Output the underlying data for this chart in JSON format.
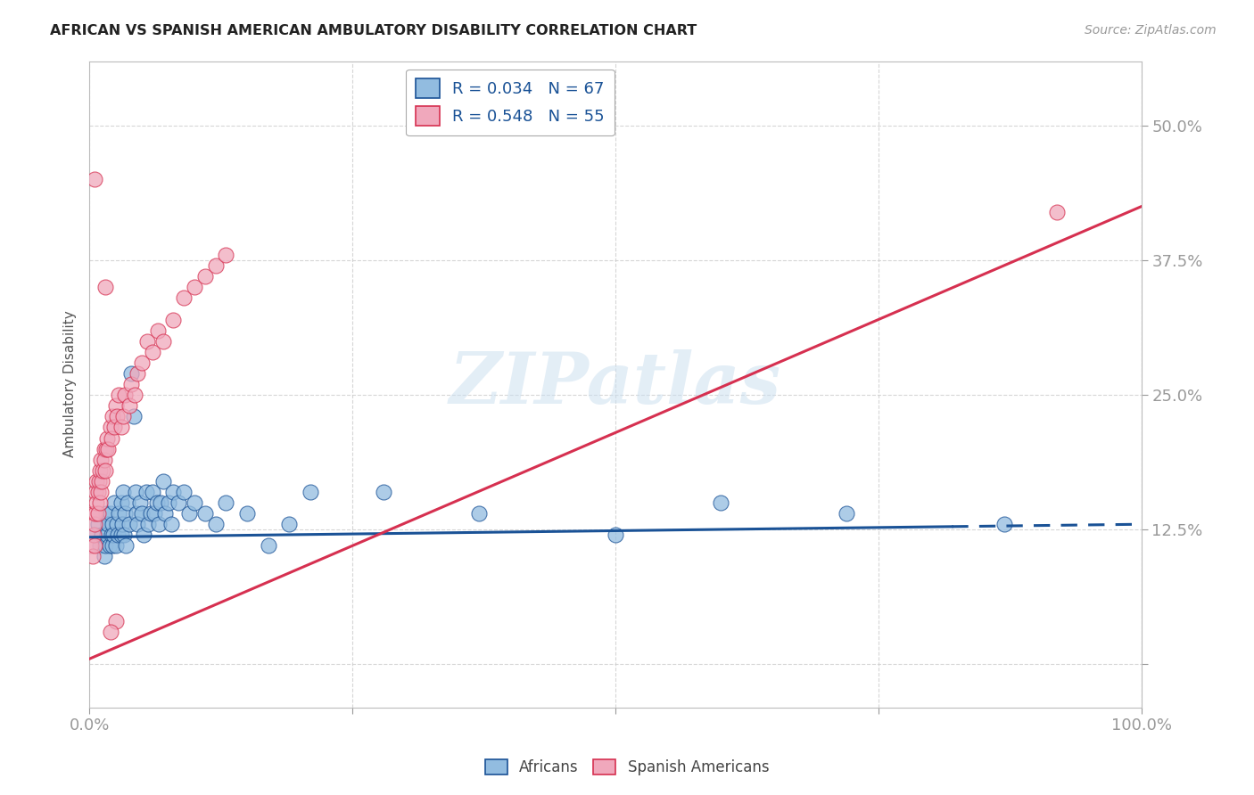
{
  "title": "AFRICAN VS SPANISH AMERICAN AMBULATORY DISABILITY CORRELATION CHART",
  "source": "Source: ZipAtlas.com",
  "ylabel": "Ambulatory Disability",
  "xlim": [
    0,
    1.0
  ],
  "ylim": [
    -0.04,
    0.56
  ],
  "yticks": [
    0.0,
    0.125,
    0.25,
    0.375,
    0.5
  ],
  "ytick_labels": [
    "",
    "12.5%",
    "25.0%",
    "37.5%",
    "50.0%"
  ],
  "xticks": [
    0.0,
    0.25,
    0.5,
    0.75,
    1.0
  ],
  "xtick_labels": [
    "0.0%",
    "",
    "",
    "",
    "100.0%"
  ],
  "watermark": "ZIPatlas",
  "legend1_R": "R = 0.034",
  "legend1_N": "N = 67",
  "legend2_R": "R = 0.548",
  "legend2_N": "N = 55",
  "blue_color": "#92bce0",
  "pink_color": "#f0a8bc",
  "line_blue": "#1a5296",
  "line_pink": "#d63050",
  "title_color": "#222222",
  "tick_color": "#3060b0",
  "background_color": "#ffffff",
  "grid_color": "#cccccc",
  "blue_line_slope": 0.012,
  "blue_line_intercept": 0.118,
  "pink_line_slope": 0.42,
  "pink_line_intercept": 0.005,
  "africans_x": [
    0.005,
    0.008,
    0.01,
    0.012,
    0.014,
    0.015,
    0.016,
    0.017,
    0.018,
    0.019,
    0.02,
    0.021,
    0.022,
    0.022,
    0.023,
    0.024,
    0.025,
    0.026,
    0.027,
    0.028,
    0.03,
    0.03,
    0.031,
    0.032,
    0.033,
    0.034,
    0.035,
    0.036,
    0.038,
    0.04,
    0.042,
    0.044,
    0.045,
    0.046,
    0.048,
    0.05,
    0.052,
    0.054,
    0.056,
    0.058,
    0.06,
    0.062,
    0.064,
    0.066,
    0.068,
    0.07,
    0.072,
    0.075,
    0.078,
    0.08,
    0.085,
    0.09,
    0.095,
    0.1,
    0.11,
    0.12,
    0.13,
    0.15,
    0.17,
    0.19,
    0.21,
    0.28,
    0.37,
    0.5,
    0.6,
    0.72,
    0.87
  ],
  "africans_y": [
    0.12,
    0.13,
    0.11,
    0.12,
    0.1,
    0.11,
    0.14,
    0.12,
    0.13,
    0.11,
    0.14,
    0.12,
    0.11,
    0.13,
    0.12,
    0.15,
    0.11,
    0.13,
    0.12,
    0.14,
    0.15,
    0.12,
    0.13,
    0.16,
    0.12,
    0.14,
    0.11,
    0.15,
    0.13,
    0.27,
    0.23,
    0.16,
    0.14,
    0.13,
    0.15,
    0.14,
    0.12,
    0.16,
    0.13,
    0.14,
    0.16,
    0.14,
    0.15,
    0.13,
    0.15,
    0.17,
    0.14,
    0.15,
    0.13,
    0.16,
    0.15,
    0.16,
    0.14,
    0.15,
    0.14,
    0.13,
    0.15,
    0.14,
    0.11,
    0.13,
    0.16,
    0.16,
    0.14,
    0.12,
    0.15,
    0.14,
    0.13
  ],
  "spanish_x": [
    0.002,
    0.003,
    0.004,
    0.004,
    0.005,
    0.005,
    0.006,
    0.006,
    0.007,
    0.007,
    0.008,
    0.008,
    0.009,
    0.01,
    0.01,
    0.011,
    0.011,
    0.012,
    0.013,
    0.014,
    0.014,
    0.015,
    0.016,
    0.017,
    0.018,
    0.02,
    0.021,
    0.022,
    0.024,
    0.025,
    0.026,
    0.028,
    0.03,
    0.032,
    0.034,
    0.038,
    0.04,
    0.043,
    0.046,
    0.05,
    0.055,
    0.06,
    0.065,
    0.07,
    0.08,
    0.09,
    0.1,
    0.11,
    0.12,
    0.13,
    0.005,
    0.015,
    0.025,
    0.02,
    0.92
  ],
  "spanish_y": [
    0.11,
    0.1,
    0.12,
    0.14,
    0.11,
    0.13,
    0.14,
    0.16,
    0.15,
    0.17,
    0.14,
    0.16,
    0.17,
    0.15,
    0.18,
    0.16,
    0.19,
    0.17,
    0.18,
    0.2,
    0.19,
    0.18,
    0.2,
    0.21,
    0.2,
    0.22,
    0.21,
    0.23,
    0.22,
    0.24,
    0.23,
    0.25,
    0.22,
    0.23,
    0.25,
    0.24,
    0.26,
    0.25,
    0.27,
    0.28,
    0.3,
    0.29,
    0.31,
    0.3,
    0.32,
    0.34,
    0.35,
    0.36,
    0.37,
    0.38,
    0.45,
    0.35,
    0.04,
    0.03,
    0.42
  ]
}
